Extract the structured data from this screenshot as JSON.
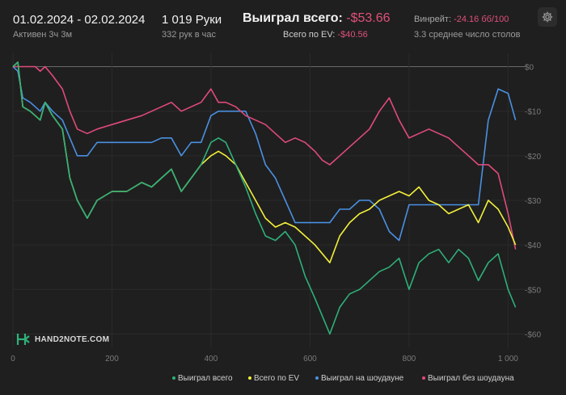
{
  "header": {
    "date_range": "01.02.2024 - 02.02.2024",
    "active": "Активен 3ч 3м",
    "hands": "1 019 Руки",
    "hands_per_hour": "332 рук в час",
    "won_total_label": "Выиграл всего:",
    "won_total_value": "-$53.66",
    "ev_total_label": "Всего по EV:",
    "ev_total_value": "-$40.56",
    "winrate_label": "Винрейт:",
    "winrate_value": "-24.16 бб/100",
    "avg_tables": "3.3 среднее число столов"
  },
  "logo_text": "HAND2NOTE.COM",
  "settings_icon": "gear-icon",
  "colors": {
    "background": "#1f1f1f",
    "won_total": "#2fb07a",
    "ev_total": "#f2ef3a",
    "showdown": "#4a90e2",
    "non_showdown": "#e04a7a",
    "negative_text": "#e0507a"
  },
  "chart_data": {
    "type": "line",
    "xlim": [
      0,
      1019
    ],
    "ylim": [
      -63,
      3
    ],
    "grid": true,
    "legend_position": "bottom-right",
    "x_ticks": [
      0,
      200,
      400,
      600,
      800,
      1000
    ],
    "x_tick_labels": [
      "0",
      "200",
      "400",
      "600",
      "800",
      "1 000"
    ],
    "y_ticks": [
      0,
      -10,
      -20,
      -30,
      -40,
      -50,
      -60
    ],
    "y_tick_labels": [
      "$0",
      "-$10",
      "-$20",
      "-$30",
      "-$40",
      "-$50",
      "-$60"
    ],
    "series": [
      {
        "name": "Выиграл всего",
        "color": "#2fb07a",
        "x": [
          0,
          10,
          20,
          35,
          45,
          55,
          65,
          80,
          100,
          115,
          130,
          150,
          170,
          200,
          230,
          260,
          280,
          300,
          320,
          340,
          360,
          380,
          400,
          415,
          430,
          450,
          470,
          490,
          510,
          530,
          550,
          570,
          590,
          610,
          625,
          640,
          660,
          680,
          700,
          720,
          740,
          760,
          780,
          800,
          820,
          840,
          860,
          880,
          900,
          920,
          940,
          960,
          980,
          1000,
          1015
        ],
        "y": [
          0,
          1,
          -9,
          -10,
          -11,
          -12,
          -8,
          -11,
          -14,
          -25,
          -30,
          -34,
          -30,
          -28,
          -28,
          -26,
          -27,
          -25,
          -23,
          -28,
          -25,
          -22,
          -17,
          -16,
          -17,
          -22,
          -27,
          -33,
          -38,
          -39,
          -37,
          -40,
          -47,
          -52,
          -56,
          -60,
          -54,
          -51,
          -50,
          -48,
          -46,
          -45,
          -43,
          -50,
          -44,
          -42,
          -41,
          -44,
          -41,
          -43,
          -48,
          -44,
          -42,
          -50,
          -54
        ]
      },
      {
        "name": "Всего по EV",
        "color": "#f2ef3a",
        "x": [
          0,
          10,
          20,
          35,
          45,
          55,
          65,
          80,
          100,
          115,
          130,
          150,
          170,
          200,
          230,
          260,
          280,
          300,
          320,
          340,
          360,
          380,
          400,
          415,
          430,
          450,
          470,
          490,
          510,
          530,
          550,
          570,
          590,
          610,
          625,
          640,
          660,
          680,
          700,
          720,
          740,
          760,
          780,
          800,
          820,
          840,
          860,
          880,
          900,
          920,
          940,
          960,
          980,
          1000,
          1015
        ],
        "y": [
          0,
          1,
          -9,
          -10,
          -11,
          -12,
          -8,
          -11,
          -14,
          -25,
          -30,
          -34,
          -30,
          -28,
          -28,
          -26,
          -27,
          -25,
          -23,
          -28,
          -25,
          -22,
          -20,
          -19,
          -20,
          -22,
          -26,
          -30,
          -34,
          -36,
          -35,
          -36,
          -38,
          -40,
          -42,
          -44,
          -38,
          -35,
          -33,
          -32,
          -30,
          -29,
          -28,
          -29,
          -27,
          -30,
          -31,
          -33,
          -32,
          -31,
          -35,
          -30,
          -32,
          -36,
          -40
        ]
      },
      {
        "name": "Выиграл на шоудауне",
        "color": "#4a90e2",
        "x": [
          0,
          10,
          20,
          35,
          45,
          55,
          65,
          80,
          100,
          115,
          130,
          150,
          170,
          200,
          230,
          260,
          280,
          300,
          320,
          340,
          360,
          380,
          400,
          415,
          430,
          450,
          470,
          490,
          510,
          530,
          550,
          570,
          590,
          610,
          625,
          640,
          660,
          680,
          700,
          720,
          740,
          760,
          780,
          800,
          820,
          840,
          860,
          880,
          900,
          920,
          940,
          960,
          980,
          1000,
          1015
        ],
        "y": [
          0,
          -1,
          -7,
          -8,
          -9,
          -10,
          -8,
          -10,
          -12,
          -16,
          -20,
          -20,
          -17,
          -17,
          -17,
          -17,
          -17,
          -16,
          -16,
          -20,
          -17,
          -17,
          -11,
          -10,
          -10,
          -10,
          -10,
          -15,
          -22,
          -25,
          -30,
          -35,
          -35,
          -35,
          -35,
          -35,
          -32,
          -32,
          -30,
          -30,
          -32,
          -37,
          -39,
          -31,
          -31,
          -31,
          -31,
          -31,
          -31,
          -31,
          -31,
          -12,
          -5,
          -6,
          -12
        ]
      },
      {
        "name": "Выиграл без шоудауна",
        "color": "#e04a7a",
        "x": [
          0,
          10,
          20,
          35,
          45,
          55,
          65,
          80,
          100,
          115,
          130,
          150,
          170,
          200,
          230,
          260,
          280,
          300,
          320,
          340,
          360,
          380,
          400,
          415,
          430,
          450,
          470,
          490,
          510,
          530,
          550,
          570,
          590,
          610,
          625,
          640,
          660,
          680,
          700,
          720,
          740,
          760,
          780,
          800,
          820,
          840,
          860,
          880,
          900,
          920,
          940,
          960,
          980,
          1000,
          1015
        ],
        "y": [
          0,
          0,
          0,
          0,
          0,
          -1,
          0,
          -2,
          -5,
          -10,
          -14,
          -15,
          -14,
          -13,
          -12,
          -11,
          -10,
          -9,
          -8,
          -10,
          -9,
          -8,
          -5,
          -8,
          -8,
          -9,
          -11,
          -12,
          -13,
          -15,
          -17,
          -16,
          -17,
          -19,
          -21,
          -22,
          -20,
          -18,
          -16,
          -14,
          -10,
          -7,
          -12,
          -16,
          -15,
          -14,
          -15,
          -16,
          -18,
          -20,
          -22,
          -22,
          -24,
          -33,
          -41
        ]
      }
    ]
  }
}
